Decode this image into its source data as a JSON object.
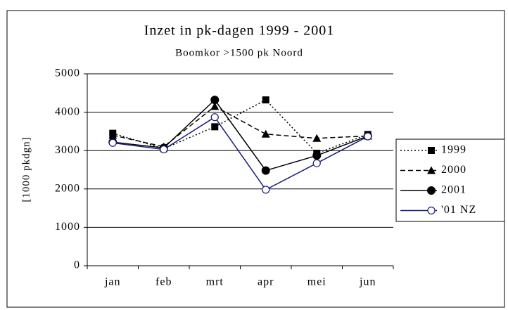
{
  "chart_data": {
    "type": "line",
    "title": "Inzet in pk-dagen 1999 - 2001",
    "subtitle": "Boomkor >1500 pk Noord",
    "y_label": "[1000 pkdgn]",
    "categories": [
      "jan",
      "feb",
      "mrt",
      "apr",
      "mei",
      "jun"
    ],
    "series": [
      {
        "name": "1999",
        "color": "#000000",
        "linestyle": "dotted",
        "marker": "square",
        "values": [
          3450,
          3050,
          3620,
          4320,
          2930,
          3420
        ]
      },
      {
        "name": "2000",
        "color": "#000000",
        "linestyle": "dashed",
        "marker": "triangle",
        "values": [
          3400,
          3100,
          4150,
          3430,
          3320,
          3380
        ]
      },
      {
        "name": "2001",
        "color": "#000000",
        "linestyle": "solid",
        "marker": "circle",
        "values": [
          3220,
          3070,
          4320,
          2480,
          2870,
          3380
        ]
      },
      {
        "name": "'01 NZ",
        "color": "#1a1a80",
        "linestyle": "solid",
        "marker": "open-circle",
        "values": [
          3200,
          3030,
          3870,
          1980,
          2670,
          3370
        ]
      }
    ],
    "ylim": [
      0,
      5000
    ],
    "yticks": [
      0,
      1000,
      2000,
      3000,
      4000,
      5000
    ],
    "grid": true,
    "legend": "right"
  }
}
